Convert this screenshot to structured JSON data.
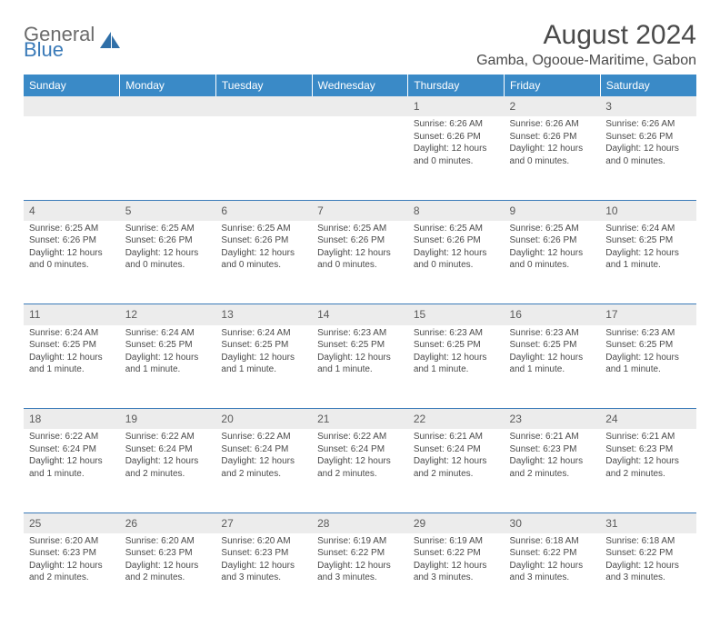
{
  "logo": {
    "word1": "General",
    "word2": "Blue"
  },
  "header": {
    "title": "August 2024",
    "location": "Gamba, Ogooue-Maritime, Gabon"
  },
  "colors": {
    "header_bg": "#3a8ac7",
    "accent": "#3a7ab8",
    "daynum_bg": "#ececec",
    "text": "#4a4a4a"
  },
  "weekdays": [
    "Sunday",
    "Monday",
    "Tuesday",
    "Wednesday",
    "Thursday",
    "Friday",
    "Saturday"
  ],
  "weeks": [
    {
      "nums": [
        "",
        "",
        "",
        "",
        "1",
        "2",
        "3"
      ],
      "cells": [
        null,
        null,
        null,
        null,
        {
          "sunrise": "Sunrise: 6:26 AM",
          "sunset": "Sunset: 6:26 PM",
          "day1": "Daylight: 12 hours",
          "day2": "and 0 minutes."
        },
        {
          "sunrise": "Sunrise: 6:26 AM",
          "sunset": "Sunset: 6:26 PM",
          "day1": "Daylight: 12 hours",
          "day2": "and 0 minutes."
        },
        {
          "sunrise": "Sunrise: 6:26 AM",
          "sunset": "Sunset: 6:26 PM",
          "day1": "Daylight: 12 hours",
          "day2": "and 0 minutes."
        }
      ]
    },
    {
      "nums": [
        "4",
        "5",
        "6",
        "7",
        "8",
        "9",
        "10"
      ],
      "cells": [
        {
          "sunrise": "Sunrise: 6:25 AM",
          "sunset": "Sunset: 6:26 PM",
          "day1": "Daylight: 12 hours",
          "day2": "and 0 minutes."
        },
        {
          "sunrise": "Sunrise: 6:25 AM",
          "sunset": "Sunset: 6:26 PM",
          "day1": "Daylight: 12 hours",
          "day2": "and 0 minutes."
        },
        {
          "sunrise": "Sunrise: 6:25 AM",
          "sunset": "Sunset: 6:26 PM",
          "day1": "Daylight: 12 hours",
          "day2": "and 0 minutes."
        },
        {
          "sunrise": "Sunrise: 6:25 AM",
          "sunset": "Sunset: 6:26 PM",
          "day1": "Daylight: 12 hours",
          "day2": "and 0 minutes."
        },
        {
          "sunrise": "Sunrise: 6:25 AM",
          "sunset": "Sunset: 6:26 PM",
          "day1": "Daylight: 12 hours",
          "day2": "and 0 minutes."
        },
        {
          "sunrise": "Sunrise: 6:25 AM",
          "sunset": "Sunset: 6:26 PM",
          "day1": "Daylight: 12 hours",
          "day2": "and 0 minutes."
        },
        {
          "sunrise": "Sunrise: 6:24 AM",
          "sunset": "Sunset: 6:25 PM",
          "day1": "Daylight: 12 hours",
          "day2": "and 1 minute."
        }
      ]
    },
    {
      "nums": [
        "11",
        "12",
        "13",
        "14",
        "15",
        "16",
        "17"
      ],
      "cells": [
        {
          "sunrise": "Sunrise: 6:24 AM",
          "sunset": "Sunset: 6:25 PM",
          "day1": "Daylight: 12 hours",
          "day2": "and 1 minute."
        },
        {
          "sunrise": "Sunrise: 6:24 AM",
          "sunset": "Sunset: 6:25 PM",
          "day1": "Daylight: 12 hours",
          "day2": "and 1 minute."
        },
        {
          "sunrise": "Sunrise: 6:24 AM",
          "sunset": "Sunset: 6:25 PM",
          "day1": "Daylight: 12 hours",
          "day2": "and 1 minute."
        },
        {
          "sunrise": "Sunrise: 6:23 AM",
          "sunset": "Sunset: 6:25 PM",
          "day1": "Daylight: 12 hours",
          "day2": "and 1 minute."
        },
        {
          "sunrise": "Sunrise: 6:23 AM",
          "sunset": "Sunset: 6:25 PM",
          "day1": "Daylight: 12 hours",
          "day2": "and 1 minute."
        },
        {
          "sunrise": "Sunrise: 6:23 AM",
          "sunset": "Sunset: 6:25 PM",
          "day1": "Daylight: 12 hours",
          "day2": "and 1 minute."
        },
        {
          "sunrise": "Sunrise: 6:23 AM",
          "sunset": "Sunset: 6:25 PM",
          "day1": "Daylight: 12 hours",
          "day2": "and 1 minute."
        }
      ]
    },
    {
      "nums": [
        "18",
        "19",
        "20",
        "21",
        "22",
        "23",
        "24"
      ],
      "cells": [
        {
          "sunrise": "Sunrise: 6:22 AM",
          "sunset": "Sunset: 6:24 PM",
          "day1": "Daylight: 12 hours",
          "day2": "and 1 minute."
        },
        {
          "sunrise": "Sunrise: 6:22 AM",
          "sunset": "Sunset: 6:24 PM",
          "day1": "Daylight: 12 hours",
          "day2": "and 2 minutes."
        },
        {
          "sunrise": "Sunrise: 6:22 AM",
          "sunset": "Sunset: 6:24 PM",
          "day1": "Daylight: 12 hours",
          "day2": "and 2 minutes."
        },
        {
          "sunrise": "Sunrise: 6:22 AM",
          "sunset": "Sunset: 6:24 PM",
          "day1": "Daylight: 12 hours",
          "day2": "and 2 minutes."
        },
        {
          "sunrise": "Sunrise: 6:21 AM",
          "sunset": "Sunset: 6:24 PM",
          "day1": "Daylight: 12 hours",
          "day2": "and 2 minutes."
        },
        {
          "sunrise": "Sunrise: 6:21 AM",
          "sunset": "Sunset: 6:23 PM",
          "day1": "Daylight: 12 hours",
          "day2": "and 2 minutes."
        },
        {
          "sunrise": "Sunrise: 6:21 AM",
          "sunset": "Sunset: 6:23 PM",
          "day1": "Daylight: 12 hours",
          "day2": "and 2 minutes."
        }
      ]
    },
    {
      "nums": [
        "25",
        "26",
        "27",
        "28",
        "29",
        "30",
        "31"
      ],
      "cells": [
        {
          "sunrise": "Sunrise: 6:20 AM",
          "sunset": "Sunset: 6:23 PM",
          "day1": "Daylight: 12 hours",
          "day2": "and 2 minutes."
        },
        {
          "sunrise": "Sunrise: 6:20 AM",
          "sunset": "Sunset: 6:23 PM",
          "day1": "Daylight: 12 hours",
          "day2": "and 2 minutes."
        },
        {
          "sunrise": "Sunrise: 6:20 AM",
          "sunset": "Sunset: 6:23 PM",
          "day1": "Daylight: 12 hours",
          "day2": "and 3 minutes."
        },
        {
          "sunrise": "Sunrise: 6:19 AM",
          "sunset": "Sunset: 6:22 PM",
          "day1": "Daylight: 12 hours",
          "day2": "and 3 minutes."
        },
        {
          "sunrise": "Sunrise: 6:19 AM",
          "sunset": "Sunset: 6:22 PM",
          "day1": "Daylight: 12 hours",
          "day2": "and 3 minutes."
        },
        {
          "sunrise": "Sunrise: 6:18 AM",
          "sunset": "Sunset: 6:22 PM",
          "day1": "Daylight: 12 hours",
          "day2": "and 3 minutes."
        },
        {
          "sunrise": "Sunrise: 6:18 AM",
          "sunset": "Sunset: 6:22 PM",
          "day1": "Daylight: 12 hours",
          "day2": "and 3 minutes."
        }
      ]
    }
  ]
}
